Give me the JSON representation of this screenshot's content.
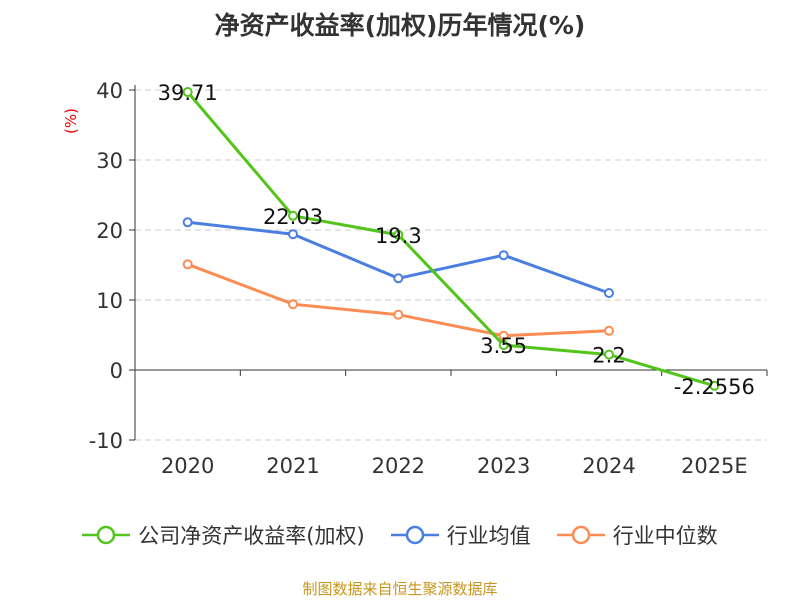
{
  "chart_data": {
    "type": "line",
    "title": "净资产收益率(加权)历年情况(%)",
    "ylabel": "(%)",
    "categories": [
      "2020",
      "2021",
      "2022",
      "2023",
      "2024",
      "2025E"
    ],
    "ylim": [
      -10,
      40
    ],
    "yticks": [
      "-10",
      "0",
      "10",
      "20",
      "30",
      "40"
    ],
    "grid": true,
    "legend_position": "bottom",
    "series": [
      {
        "name": "公司净资产收益率(加权)",
        "color": "#52c41a",
        "values": [
          39.71,
          22.03,
          19.3,
          3.55,
          2.2,
          -2.2556
        ],
        "labels": [
          "39.71",
          "22.03",
          "19.3",
          "3.55",
          "2.2",
          "-2.2556"
        ]
      },
      {
        "name": "行业均值",
        "color": "#4a7fe0",
        "values": [
          21.1,
          19.4,
          13.1,
          16.4,
          11.0,
          null
        ]
      },
      {
        "name": "行业中位数",
        "color": "#fc8c52",
        "values": [
          15.1,
          9.4,
          7.9,
          4.9,
          5.6,
          null
        ]
      }
    ]
  },
  "footer": "制图数据来自恒生聚源数据库"
}
